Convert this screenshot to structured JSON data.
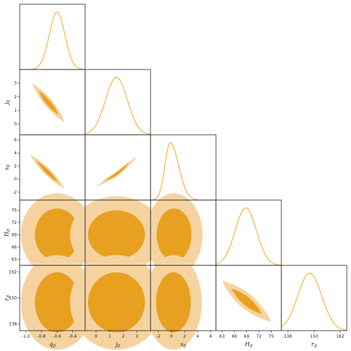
{
  "chart_data": {
    "type": "corner",
    "colors": {
      "curve": "#f5a623",
      "contour_inner": "#e8a020",
      "contour_outer": "#f5d3a0",
      "frame": "#222222"
    },
    "parameters": [
      {
        "name": "q0",
        "label_main": "q",
        "label_sub": "0",
        "mean": -0.6,
        "sigma": 0.1,
        "range": [
          -1.08,
          -0.24
        ],
        "ticks": [
          "-1.0",
          "-0.8",
          "-0.6",
          "-0.4"
        ],
        "tick_values": [
          -1.0,
          -0.8,
          -0.6,
          -0.4
        ]
      },
      {
        "name": "j0",
        "label_main": "j",
        "label_sub": "0",
        "mean": 1.5,
        "sigma": 0.8,
        "range": [
          -0.8,
          4.0
        ],
        "ticks": [
          "0",
          "1",
          "2",
          "3"
        ],
        "tick_values": [
          0,
          1,
          2,
          3
        ]
      },
      {
        "name": "s0",
        "label_main": "s",
        "label_sub": "0",
        "mean": -0.2,
        "sigma": 0.8,
        "range": [
          -3.2,
          6.8
        ],
        "ticks": [
          "-2",
          "0",
          "2",
          "4",
          "6"
        ],
        "tick_values": [
          -2,
          0,
          2,
          4,
          6
        ]
      },
      {
        "name": "H0",
        "label_main": "H",
        "label_sub": "0",
        "mean": 68.8,
        "sigma": 2.6,
        "range": [
          61.5,
          77.5
        ],
        "ticks": [
          "63",
          "66",
          "69",
          "72",
          "75"
        ],
        "tick_values": [
          63,
          66,
          69,
          72,
          75
        ]
      },
      {
        "name": "rd",
        "label_main": "r",
        "label_sub": "d",
        "mean": 148.0,
        "sigma": 5.5,
        "range": [
          135,
          165
        ],
        "ticks": [
          "138",
          "150",
          "162"
        ],
        "tick_values": [
          138,
          150,
          162
        ]
      }
    ],
    "pairs": [
      {
        "row": 1,
        "col": 0,
        "shape": "band",
        "x": [
          -0.92,
          -0.5
        ],
        "y": [
          3.0,
          0.1
        ],
        "halfwidth": 0.32
      },
      {
        "row": 2,
        "col": 0,
        "shape": "band",
        "x": [
          -0.95,
          -0.5
        ],
        "y": [
          3.8,
          -1.5
        ],
        "halfwidth": 0.55
      },
      {
        "row": 2,
        "col": 1,
        "shape": "curve",
        "x": [
          0.0,
          3.0
        ],
        "y": [
          -1.1,
          3.5
        ],
        "halfwidth": 0.35
      },
      {
        "row": 3,
        "col": 0,
        "shape": "blob",
        "cx": -0.6,
        "cy": 69.0,
        "rx": 0.3,
        "ry": 7.0,
        "rot": 0
      },
      {
        "row": 3,
        "col": 1,
        "shape": "blob",
        "cx": 1.5,
        "cy": 69.0,
        "rx": 2.2,
        "ry": 6.5,
        "rot": 0
      },
      {
        "row": 3,
        "col": 2,
        "shape": "blob",
        "cx": 0.4,
        "cy": 69.0,
        "rx": 2.8,
        "ry": 7.0,
        "rot": 0
      },
      {
        "row": 4,
        "col": 0,
        "shape": "blob",
        "cx": -0.6,
        "cy": 148.0,
        "rx": 0.3,
        "ry": 15.0,
        "rot": 0
      },
      {
        "row": 4,
        "col": 1,
        "shape": "blob",
        "cx": 1.5,
        "cy": 148.0,
        "rx": 2.2,
        "ry": 15.0,
        "rot": 0
      },
      {
        "row": 4,
        "col": 2,
        "shape": "blob",
        "cx": 0.3,
        "cy": 148.0,
        "rx": 2.8,
        "ry": 15.0,
        "rot": 0
      },
      {
        "row": 4,
        "col": 3,
        "shape": "band",
        "x": [
          63.0,
          75.0
        ],
        "y": [
          158.0,
          139.0
        ],
        "halfwidth": 3.6
      }
    ]
  }
}
